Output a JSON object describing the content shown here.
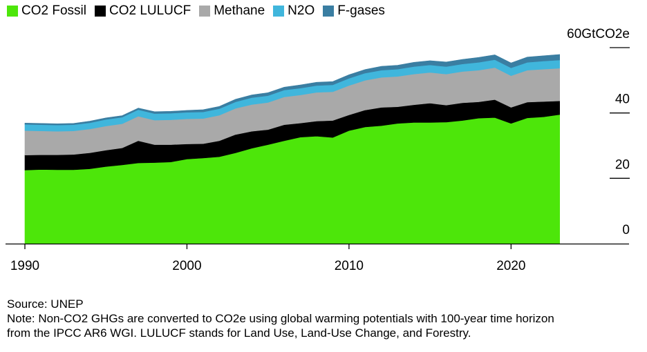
{
  "chart_data": {
    "type": "area",
    "stacked": true,
    "unit": "GtCO2e",
    "x": [
      1990,
      1991,
      1992,
      1993,
      1994,
      1995,
      1996,
      1997,
      1998,
      1999,
      2000,
      2001,
      2002,
      2003,
      2004,
      2005,
      2006,
      2007,
      2008,
      2009,
      2010,
      2011,
      2012,
      2013,
      2014,
      2015,
      2016,
      2017,
      2018,
      2019,
      2020,
      2021,
      2022,
      2023
    ],
    "series": [
      {
        "name": "CO2 Fossil",
        "color": "#4de60a",
        "values": [
          22.5,
          22.7,
          22.6,
          22.6,
          22.9,
          23.6,
          24.1,
          24.7,
          24.8,
          25.0,
          25.9,
          26.2,
          26.6,
          27.8,
          29.2,
          30.3,
          31.5,
          32.6,
          32.9,
          32.5,
          34.6,
          35.7,
          36.1,
          36.8,
          37.1,
          37.1,
          37.2,
          37.7,
          38.4,
          38.6,
          36.8,
          38.5,
          38.8,
          39.5
        ]
      },
      {
        "name": "CO2 LULUCF",
        "color": "#000000",
        "values": [
          4.6,
          4.5,
          4.6,
          4.7,
          4.9,
          5.0,
          5.2,
          6.8,
          5.5,
          5.3,
          4.6,
          4.4,
          4.9,
          5.6,
          5.2,
          4.6,
          4.9,
          4.3,
          4.6,
          5.2,
          4.8,
          5.2,
          5.6,
          5.1,
          5.4,
          5.9,
          5.2,
          5.4,
          5.0,
          5.5,
          4.9,
          4.8,
          4.7,
          4.2
        ]
      },
      {
        "name": "Methane",
        "color": "#a9a9a9",
        "values": [
          7.5,
          7.3,
          7.2,
          7.2,
          7.3,
          7.4,
          7.4,
          7.5,
          7.5,
          7.6,
          7.7,
          7.7,
          7.8,
          8.0,
          8.2,
          8.3,
          8.5,
          8.6,
          8.8,
          8.8,
          9.0,
          9.1,
          9.2,
          9.3,
          9.4,
          9.4,
          9.5,
          9.6,
          9.7,
          9.8,
          9.7,
          9.8,
          9.9,
          10.0
        ]
      },
      {
        "name": "N2O",
        "color": "#40b6dc",
        "values": [
          1.9,
          1.9,
          1.9,
          1.9,
          1.9,
          2.0,
          2.0,
          2.0,
          2.0,
          2.0,
          2.0,
          2.0,
          2.0,
          2.0,
          2.1,
          2.1,
          2.1,
          2.1,
          2.1,
          2.1,
          2.2,
          2.2,
          2.2,
          2.2,
          2.3,
          2.3,
          2.3,
          2.3,
          2.4,
          2.4,
          2.4,
          2.4,
          2.5,
          2.5
        ]
      },
      {
        "name": "F-gases",
        "color": "#3a7ea2",
        "values": [
          0.4,
          0.4,
          0.4,
          0.4,
          0.5,
          0.5,
          0.5,
          0.5,
          0.6,
          0.6,
          0.6,
          0.7,
          0.7,
          0.8,
          0.8,
          0.9,
          0.9,
          1.0,
          1.0,
          1.0,
          1.1,
          1.1,
          1.2,
          1.2,
          1.3,
          1.3,
          1.4,
          1.4,
          1.5,
          1.5,
          1.5,
          1.6,
          1.6,
          1.7
        ]
      }
    ],
    "xticks": [
      1990,
      2000,
      2010,
      2020
    ],
    "xtick_labels": [
      "1990",
      "2000",
      "2010",
      "2020"
    ],
    "yticks": [
      0,
      20,
      40,
      60
    ],
    "ytick_labels": [
      "0",
      "20",
      "40",
      "60GtCO2e"
    ],
    "xlim": [
      1990,
      2026
    ],
    "ylim": [
      0,
      60
    ],
    "legend_position": "top-left",
    "grid": false,
    "title": "",
    "xlabel": "",
    "ylabel": ""
  },
  "footer": {
    "source": "Source: UNEP",
    "note_line1": "Note: Non-CO2 GHGs are converted to CO2e using global warming potentials with 100-year time horizon",
    "note_line2": "from the IPCC AR6 WGI. LULUCF stands for Land Use, Land-Use Change, and Forestry."
  }
}
